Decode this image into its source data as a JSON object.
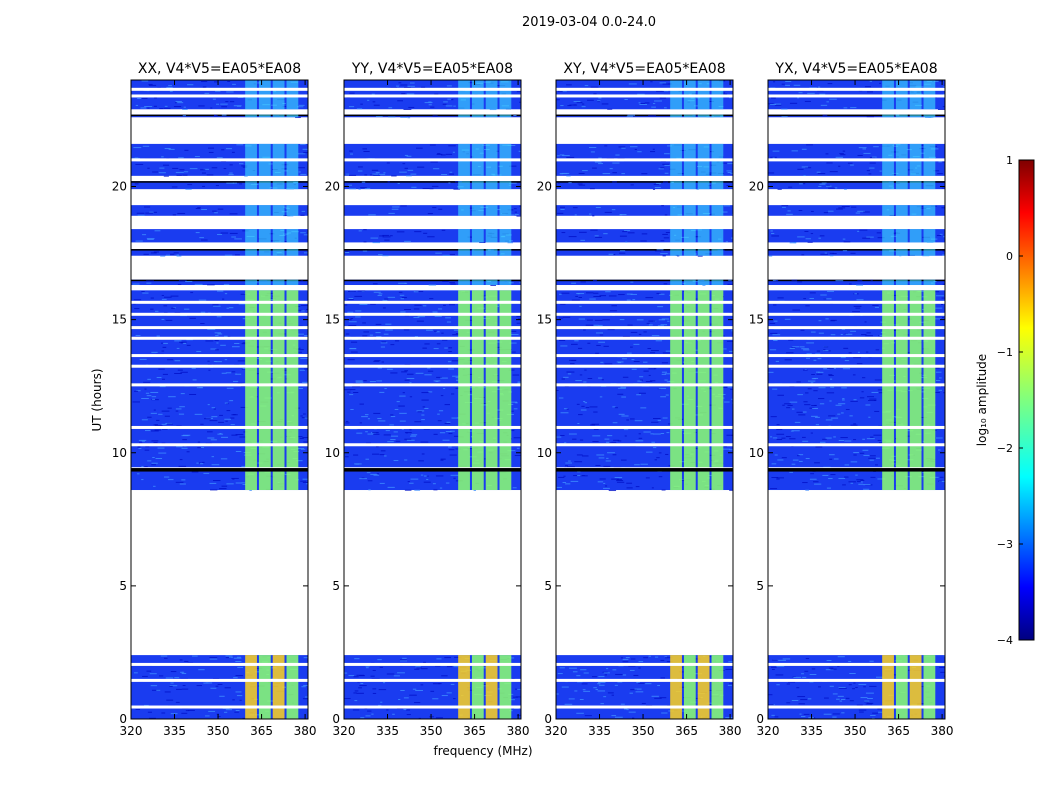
{
  "figure": {
    "suptitle": "2019-03-04 0.0-24.0",
    "xlabel": "frequency (MHz)",
    "ylabel": "UT (hours)"
  },
  "chart_data": [
    {
      "type": "heatmap",
      "title": "XX, V4*V5=EA05*EA08",
      "xlim": [
        320,
        381
      ],
      "ylim": [
        0,
        24
      ],
      "xticks": [
        320,
        335,
        350,
        365,
        380
      ],
      "yticks": [
        0,
        5,
        10,
        15,
        20
      ],
      "value_scale": "log10 amplitude",
      "strong_emission_band_mhz": [
        359,
        378
      ],
      "observed_time_ranges_hours": [
        [
          0,
          2.4
        ],
        [
          8.6,
          16.1
        ],
        [
          16.3,
          16.5
        ],
        [
          17.4,
          17.65
        ],
        [
          17.9,
          18.4
        ],
        [
          18.9,
          19.3
        ],
        [
          19.9,
          20.2
        ],
        [
          20.4,
          21.6
        ],
        [
          22.6,
          22.7
        ],
        [
          22.9,
          24
        ]
      ],
      "blank_rows_hours": [
        0.45,
        1.45,
        2.05,
        9.4,
        10.3,
        10.95,
        12.55,
        13.25,
        13.65,
        14.3,
        14.7,
        15.2,
        15.65,
        21.0,
        23.4,
        23.65
      ]
    },
    {
      "type": "heatmap",
      "title": "YY, V4*V5=EA05*EA08",
      "xlim": [
        320,
        381
      ],
      "ylim": [
        0,
        24
      ],
      "xticks": [
        320,
        335,
        350,
        365,
        380
      ],
      "yticks": [
        0,
        5,
        10,
        15,
        20
      ],
      "value_scale": "log10 amplitude",
      "strong_emission_band_mhz": [
        359,
        378
      ],
      "observed_time_ranges_hours": [
        [
          0,
          2.4
        ],
        [
          8.6,
          16.1
        ],
        [
          16.3,
          16.5
        ],
        [
          17.4,
          17.65
        ],
        [
          17.9,
          18.4
        ],
        [
          18.9,
          19.3
        ],
        [
          19.9,
          20.2
        ],
        [
          20.4,
          21.6
        ],
        [
          22.6,
          22.7
        ],
        [
          22.9,
          24
        ]
      ],
      "blank_rows_hours": [
        0.45,
        1.45,
        2.05,
        9.4,
        10.3,
        10.95,
        12.55,
        13.25,
        13.65,
        14.3,
        14.7,
        15.2,
        15.65,
        21.0,
        23.4,
        23.65
      ]
    },
    {
      "type": "heatmap",
      "title": "XY, V4*V5=EA05*EA08",
      "xlim": [
        320,
        381
      ],
      "ylim": [
        0,
        24
      ],
      "xticks": [
        320,
        335,
        350,
        365,
        380
      ],
      "yticks": [
        0,
        5,
        10,
        15,
        20
      ],
      "value_scale": "log10 amplitude",
      "strong_emission_band_mhz": [
        359,
        378
      ],
      "observed_time_ranges_hours": [
        [
          0,
          2.4
        ],
        [
          8.6,
          16.1
        ],
        [
          16.3,
          16.5
        ],
        [
          17.4,
          17.65
        ],
        [
          17.9,
          18.4
        ],
        [
          18.9,
          19.3
        ],
        [
          19.9,
          20.2
        ],
        [
          20.4,
          21.6
        ],
        [
          22.6,
          22.7
        ],
        [
          22.9,
          24
        ]
      ],
      "blank_rows_hours": [
        0.45,
        1.45,
        2.05,
        9.4,
        10.3,
        10.95,
        12.55,
        13.25,
        13.65,
        14.3,
        14.7,
        15.2,
        15.65,
        21.0,
        23.4,
        23.65
      ]
    },
    {
      "type": "heatmap",
      "title": "YX, V4*V5=EA05*EA08",
      "xlim": [
        320,
        381
      ],
      "ylim": [
        0,
        24
      ],
      "xticks": [
        320,
        335,
        350,
        365,
        380
      ],
      "yticks": [
        0,
        5,
        10,
        15,
        20
      ],
      "value_scale": "log10 amplitude",
      "strong_emission_band_mhz": [
        359,
        378
      ],
      "observed_time_ranges_hours": [
        [
          0,
          2.4
        ],
        [
          8.6,
          16.1
        ],
        [
          16.3,
          16.5
        ],
        [
          17.4,
          17.65
        ],
        [
          17.9,
          18.4
        ],
        [
          18.9,
          19.3
        ],
        [
          19.9,
          20.2
        ],
        [
          20.4,
          21.6
        ],
        [
          22.6,
          22.7
        ],
        [
          22.9,
          24
        ]
      ],
      "blank_rows_hours": [
        0.45,
        1.45,
        2.05,
        9.4,
        10.3,
        10.95,
        12.55,
        13.25,
        13.65,
        14.3,
        14.7,
        15.2,
        15.65,
        21.0,
        23.4,
        23.65
      ]
    }
  ],
  "colorbar": {
    "label": "log₁₀ amplitude",
    "ticks": [
      1,
      0,
      -1,
      -2,
      -3,
      -4
    ],
    "range": [
      -4,
      1
    ],
    "colormap": [
      "#00007f",
      "#0000ff",
      "#007fff",
      "#00ffff",
      "#7fff7f",
      "#ffff00",
      "#ff7f00",
      "#ff0000",
      "#7f0000"
    ]
  },
  "colors": {
    "background_noise": "#1a3cf0",
    "flagged": "#000000"
  }
}
